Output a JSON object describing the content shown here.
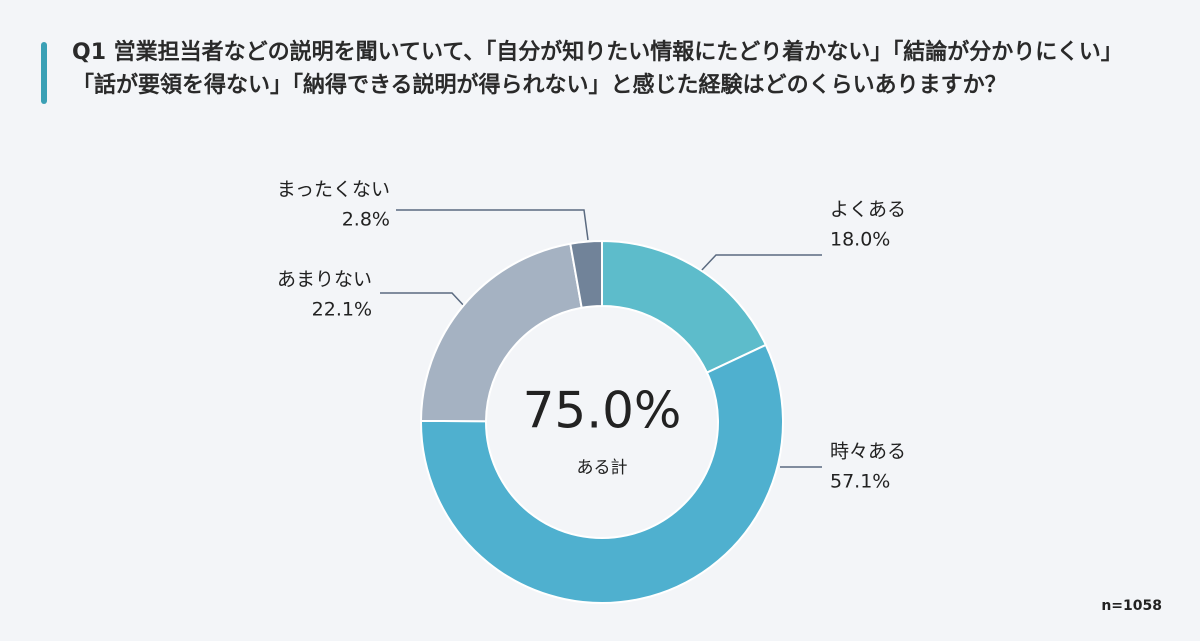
{
  "chart_data": {
    "type": "pie",
    "title": "Q1 営業担当者などの説明を聞いていて、「自分が知りたい情報にたどり着かない」「結論が分かりにくい」「話が要領を得ない」「納得できる説明が得られない」と感じた経験はどのくらいありますか？",
    "categories": [
      "よくある",
      "時々ある",
      "あまりない",
      "まったくない"
    ],
    "values": [
      18.0,
      57.1,
      22.1,
      2.8
    ],
    "value_labels": [
      "18.0%",
      "57.1%",
      "22.1%",
      "2.8%"
    ],
    "colors": [
      "#5dbccb",
      "#4fb0cf",
      "#a5b2c2",
      "#718399"
    ],
    "donut": true,
    "total": {
      "value": 75.0,
      "label": "75.0%",
      "caption": "ある計"
    },
    "note": "n=1058"
  }
}
